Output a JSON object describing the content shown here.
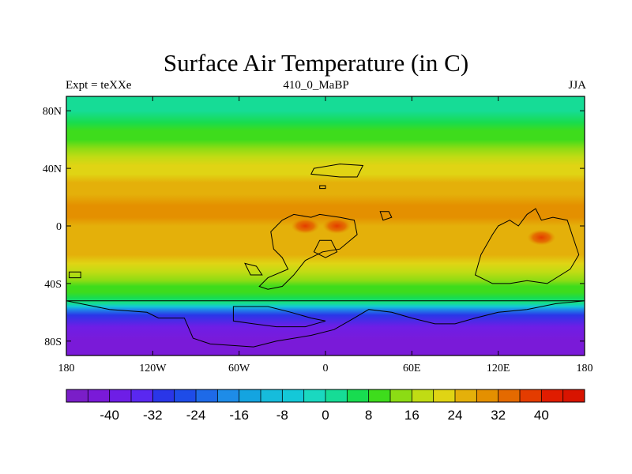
{
  "chart_data": {
    "type": "heatmap",
    "title": "Surface Air Temperature (in C)",
    "left_string": "Expt = teXXe",
    "center_string": "410_0_MaBP",
    "right_string": "JJA",
    "projection": "cylindrical-equidistant",
    "xlim": [
      -180,
      180
    ],
    "ylim": [
      -90,
      90
    ],
    "x_ticks": [
      {
        "value": -180,
        "label": "180"
      },
      {
        "value": -120,
        "label": "120W"
      },
      {
        "value": -60,
        "label": "60W"
      },
      {
        "value": 0,
        "label": "0"
      },
      {
        "value": 60,
        "label": "60E"
      },
      {
        "value": 120,
        "label": "120E"
      },
      {
        "value": 180,
        "label": "180"
      }
    ],
    "y_ticks": [
      {
        "value": 80,
        "label": "80N"
      },
      {
        "value": 40,
        "label": "40N"
      },
      {
        "value": 0,
        "label": "0"
      },
      {
        "value": -40,
        "label": "40S"
      },
      {
        "value": -80,
        "label": "80S"
      }
    ],
    "zonal_mean_temperature": [
      {
        "lat": 90,
        "value": 1
      },
      {
        "lat": 80,
        "value": 1
      },
      {
        "lat": 72,
        "value": 4
      },
      {
        "lat": 66,
        "value": 8
      },
      {
        "lat": 60,
        "value": 11
      },
      {
        "lat": 54,
        "value": 14
      },
      {
        "lat": 48,
        "value": 17
      },
      {
        "lat": 42,
        "value": 20
      },
      {
        "lat": 36,
        "value": 22
      },
      {
        "lat": 30,
        "value": 24
      },
      {
        "lat": 22,
        "value": 26
      },
      {
        "lat": 14,
        "value": 28
      },
      {
        "lat": 6,
        "value": 28
      },
      {
        "lat": 0,
        "value": 27
      },
      {
        "lat": -8,
        "value": 27
      },
      {
        "lat": -14,
        "value": 26
      },
      {
        "lat": -20,
        "value": 24
      },
      {
        "lat": -26,
        "value": 22
      },
      {
        "lat": -32,
        "value": 18
      },
      {
        "lat": -38,
        "value": 14
      },
      {
        "lat": -42,
        "value": 11
      },
      {
        "lat": -46,
        "value": 8
      },
      {
        "lat": -50,
        "value": 4
      },
      {
        "lat": -54,
        "value": 0
      },
      {
        "lat": -56,
        "value": -8
      },
      {
        "lat": -58,
        "value": -20
      },
      {
        "lat": -62,
        "value": -32
      },
      {
        "lat": -70,
        "value": -40
      },
      {
        "lat": -80,
        "value": -43
      },
      {
        "lat": -90,
        "value": -44
      }
    ],
    "hot_spots": [
      {
        "region": "Gondwana tropics 1",
        "lon": -14,
        "lat": 0,
        "value": 34
      },
      {
        "region": "Gondwana tropics 2",
        "lon": 8,
        "lat": 0,
        "value": 33
      },
      {
        "region": "East tropics",
        "lon": 150,
        "lat": -8,
        "value": 34
      }
    ],
    "colorbar": {
      "levels": [
        -44,
        -40,
        -36,
        -32,
        -28,
        -24,
        -20,
        -16,
        -12,
        -8,
        -4,
        0,
        4,
        8,
        12,
        16,
        20,
        24,
        28,
        32,
        36,
        40,
        44
      ],
      "labels": [
        "-40",
        "-32",
        "-24",
        "-16",
        "-8",
        "0",
        "8",
        "16",
        "24",
        "32",
        "40"
      ],
      "label_values": [
        -40,
        -32,
        -24,
        -16,
        -8,
        0,
        8,
        16,
        24,
        32,
        40
      ],
      "colors": [
        "#7a1ec8",
        "#7a1ad8",
        "#6e1ee6",
        "#5a28f0",
        "#2a36e8",
        "#1e4ce8",
        "#1e6ae8",
        "#1e8ce8",
        "#14a4e0",
        "#16bcdc",
        "#14c8d8",
        "#1ad8c0",
        "#16dc96",
        "#18dc50",
        "#3edc1c",
        "#8cdc14",
        "#c0dc14",
        "#e0d414",
        "#e4b00a",
        "#e49000",
        "#e46a00",
        "#e43c00",
        "#e01c00",
        "#d81400"
      ]
    },
    "land_outlines": [
      {
        "name": "north-island",
        "points": [
          [
            -8,
            40
          ],
          [
            10,
            43
          ],
          [
            26,
            42
          ],
          [
            22,
            34
          ],
          [
            10,
            34
          ],
          [
            -10,
            36
          ]
        ]
      },
      {
        "name": "small-islet-a",
        "points": [
          [
            -4,
            28
          ],
          [
            0,
            28
          ],
          [
            0,
            26
          ],
          [
            -4,
            26
          ]
        ]
      },
      {
        "name": "small-islet-b",
        "points": [
          [
            38,
            10
          ],
          [
            44,
            10
          ],
          [
            46,
            6
          ],
          [
            40,
            4
          ]
        ]
      },
      {
        "name": "gondwana",
        "points": [
          [
            -30,
            4
          ],
          [
            -22,
            8
          ],
          [
            -10,
            6
          ],
          [
            -4,
            8
          ],
          [
            10,
            6
          ],
          [
            20,
            4
          ],
          [
            22,
            -6
          ],
          [
            10,
            -16
          ],
          [
            -2,
            -18
          ],
          [
            -14,
            -24
          ],
          [
            -22,
            -34
          ],
          [
            -30,
            -42
          ],
          [
            -40,
            -44
          ],
          [
            -46,
            -42
          ],
          [
            -40,
            -36
          ],
          [
            -26,
            -30
          ],
          [
            -30,
            -22
          ],
          [
            -36,
            -16
          ],
          [
            -38,
            -4
          ]
        ]
      },
      {
        "name": "gondwana-inner-east",
        "points": [
          [
            -4,
            -10
          ],
          [
            4,
            -10
          ],
          [
            8,
            -18
          ],
          [
            0,
            -22
          ],
          [
            -8,
            -18
          ]
        ]
      },
      {
        "name": "east-block",
        "points": [
          [
            120,
            0
          ],
          [
            128,
            4
          ],
          [
            134,
            0
          ],
          [
            140,
            8
          ],
          [
            146,
            12
          ],
          [
            150,
            4
          ],
          [
            158,
            6
          ],
          [
            168,
            4
          ],
          [
            172,
            -8
          ],
          [
            176,
            -20
          ],
          [
            170,
            -30
          ],
          [
            154,
            -40
          ],
          [
            140,
            -38
          ],
          [
            128,
            -40
          ],
          [
            116,
            -40
          ],
          [
            104,
            -34
          ],
          [
            108,
            -20
          ],
          [
            116,
            -6
          ]
        ]
      },
      {
        "name": "west-small-a",
        "points": [
          [
            -56,
            -26
          ],
          [
            -48,
            -28
          ],
          [
            -44,
            -34
          ],
          [
            -52,
            -34
          ]
        ]
      },
      {
        "name": "west-small-b",
        "points": [
          [
            -178,
            -32
          ],
          [
            -170,
            -32
          ],
          [
            -170,
            -36
          ],
          [
            -178,
            -36
          ]
        ]
      },
      {
        "name": "antarctic-coast",
        "points": [
          [
            -180,
            -52
          ],
          [
            -150,
            -58
          ],
          [
            -124,
            -60
          ],
          [
            -116,
            -64
          ],
          [
            -98,
            -64
          ],
          [
            -92,
            -78
          ],
          [
            -80,
            -82
          ],
          [
            -50,
            -84
          ],
          [
            -34,
            -80
          ],
          [
            -10,
            -76
          ],
          [
            6,
            -72
          ],
          [
            20,
            -64
          ],
          [
            30,
            -58
          ],
          [
            46,
            -60
          ],
          [
            60,
            -64
          ],
          [
            76,
            -68
          ],
          [
            90,
            -68
          ],
          [
            104,
            -64
          ],
          [
            120,
            -60
          ],
          [
            140,
            -58
          ],
          [
            160,
            -54
          ],
          [
            180,
            -52
          ]
        ]
      },
      {
        "name": "antarctic-inner",
        "points": [
          [
            -64,
            -56
          ],
          [
            -40,
            -56
          ],
          [
            -24,
            -60
          ],
          [
            -10,
            -64
          ],
          [
            0,
            -66
          ],
          [
            -14,
            -70
          ],
          [
            -34,
            -70
          ],
          [
            -50,
            -68
          ],
          [
            -64,
            -66
          ]
        ]
      }
    ]
  }
}
